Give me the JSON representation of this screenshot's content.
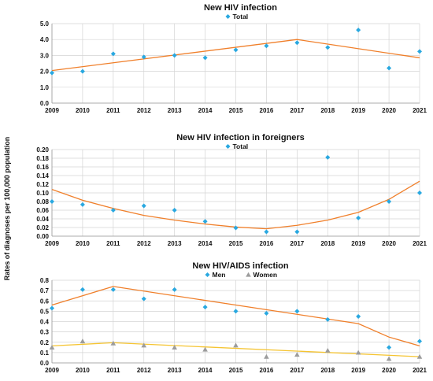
{
  "shared_ylabel": "Rates of diagnoses per 100,000 population",
  "chart_data": [
    {
      "type": "scatter",
      "title": "New HIV infection",
      "x": [
        2009,
        2010,
        2011,
        2012,
        2013,
        2014,
        2015,
        2016,
        2017,
        2018,
        2019,
        2020,
        2021
      ],
      "ylim": [
        0,
        5
      ],
      "yticks": [
        "0.0",
        "1.0",
        "2.0",
        "3.0",
        "4.0",
        "5.0"
      ],
      "legend_position": "top-center",
      "grid": true,
      "series": [
        {
          "name": "Total",
          "marker": "diamond",
          "color": "#29a8e0",
          "values": [
            1.9,
            2.0,
            3.1,
            2.9,
            3.0,
            2.85,
            3.35,
            3.6,
            3.8,
            3.5,
            4.6,
            2.2,
            3.25
          ],
          "trend": {
            "x": [
              2009,
              2017,
              2021
            ],
            "y": [
              2.05,
              4.0,
              2.85
            ],
            "color": "#f07f2a"
          }
        }
      ]
    },
    {
      "type": "scatter",
      "title": "New HIV infection in foreigners",
      "x": [
        2009,
        2010,
        2011,
        2012,
        2013,
        2014,
        2015,
        2016,
        2017,
        2018,
        2019,
        2020,
        2021
      ],
      "ylim": [
        0,
        0.2
      ],
      "yticks": [
        "0.00",
        "0.02",
        "0.04",
        "0.06",
        "0.08",
        "0.10",
        "0.12",
        "0.14",
        "0.16",
        "0.18",
        "0.20"
      ],
      "legend_position": "top-center",
      "grid": true,
      "series": [
        {
          "name": "Total",
          "marker": "diamond",
          "color": "#29a8e0",
          "values": [
            0.08,
            0.073,
            0.06,
            0.07,
            0.06,
            0.034,
            0.019,
            0.01,
            0.01,
            0.182,
            0.042,
            0.08,
            0.1
          ],
          "trend": {
            "x": [
              2009,
              2010,
              2011,
              2012,
              2013,
              2014,
              2015,
              2016,
              2017,
              2018,
              2019,
              2020,
              2021
            ],
            "y": [
              0.108,
              0.083,
              0.064,
              0.048,
              0.037,
              0.028,
              0.021,
              0.017,
              0.025,
              0.037,
              0.055,
              0.085,
              0.127
            ],
            "color": "#f07f2a"
          }
        }
      ]
    },
    {
      "type": "scatter",
      "title": "New HIV/AIDS infection",
      "x": [
        2009,
        2010,
        2011,
        2012,
        2013,
        2014,
        2015,
        2016,
        2017,
        2018,
        2019,
        2020,
        2021
      ],
      "ylim": [
        0,
        0.8
      ],
      "yticks": [
        "0.0",
        "0.1",
        "0.2",
        "0.3",
        "0.4",
        "0.5",
        "0.6",
        "0.7",
        "0.8"
      ],
      "legend_position": "top-center",
      "grid": true,
      "series": [
        {
          "name": "Men",
          "marker": "diamond",
          "color": "#29a8e0",
          "values": [
            0.53,
            0.71,
            0.71,
            0.62,
            0.71,
            0.54,
            0.5,
            0.48,
            0.5,
            0.42,
            0.45,
            0.15,
            0.21
          ],
          "trend": {
            "x": [
              2009,
              2011,
              2019,
              2020,
              2021
            ],
            "y": [
              0.56,
              0.74,
              0.38,
              0.25,
              0.165
            ],
            "color": "#f07f2a"
          }
        },
        {
          "name": "Women",
          "marker": "triangle",
          "color": "#9c9c9c",
          "values": [
            0.15,
            0.21,
            0.19,
            0.17,
            0.15,
            0.13,
            0.17,
            0.06,
            0.08,
            0.12,
            0.1,
            0.04,
            0.06
          ],
          "trend": {
            "x": [
              2009,
              2011,
              2021
            ],
            "y": [
              0.165,
              0.195,
              0.06
            ],
            "color": "#f5c431"
          }
        }
      ]
    }
  ]
}
